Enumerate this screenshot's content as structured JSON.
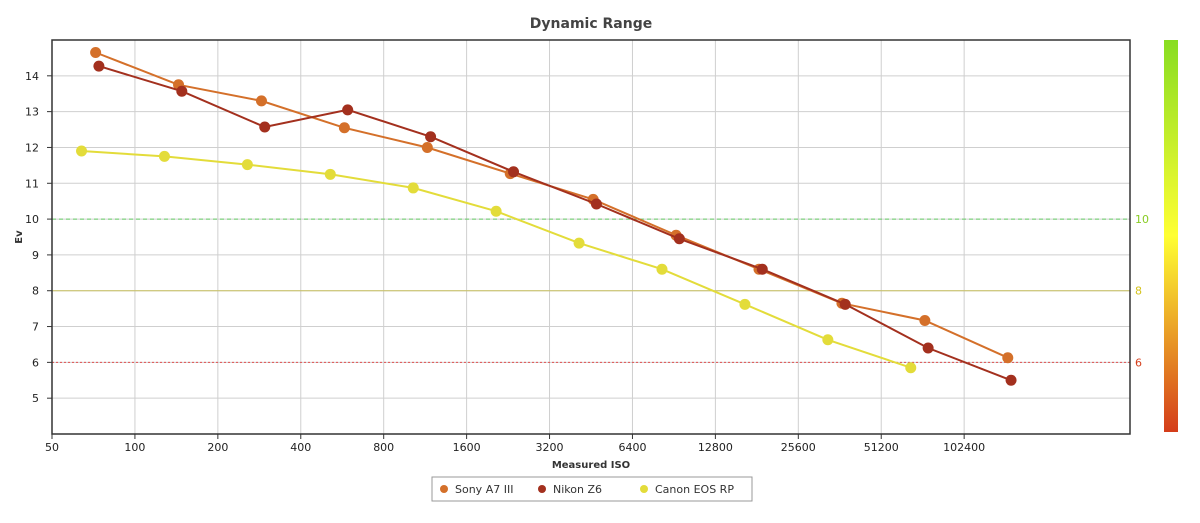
{
  "chart_data": {
    "type": "line",
    "title": "Dynamic Range",
    "xlabel": "Measured ISO",
    "ylabel": "Ev",
    "x_scale": "log2",
    "xlim": [
      50,
      409600
    ],
    "ylim": [
      4,
      15
    ],
    "grid": true,
    "x_ticks": [
      {
        "value": 50,
        "label": "50"
      },
      {
        "value": 100,
        "label": "100"
      },
      {
        "value": 200,
        "label": "200"
      },
      {
        "value": 400,
        "label": "400"
      },
      {
        "value": 800,
        "label": "800"
      },
      {
        "value": 1600,
        "label": "1600"
      },
      {
        "value": 3200,
        "label": "3200"
      },
      {
        "value": 6400,
        "label": "6400"
      },
      {
        "value": 12800,
        "label": "12800"
      },
      {
        "value": 25600,
        "label": "25600"
      },
      {
        "value": 51200,
        "label": "51200"
      },
      {
        "value": 102400,
        "label": "102400"
      }
    ],
    "y_ticks": [
      {
        "value": 5,
        "label": "5"
      },
      {
        "value": 6,
        "label": "6"
      },
      {
        "value": 7,
        "label": "7"
      },
      {
        "value": 8,
        "label": "8"
      },
      {
        "value": 9,
        "label": "9"
      },
      {
        "value": 10,
        "label": "10"
      },
      {
        "value": 11,
        "label": "11"
      },
      {
        "value": 12,
        "label": "12"
      },
      {
        "value": 13,
        "label": "13"
      },
      {
        "value": 14,
        "label": "14"
      }
    ],
    "right_axis": {
      "ticks": [
        {
          "value": 6,
          "label": "6",
          "color": "#d43d1a"
        },
        {
          "value": 8,
          "label": "8",
          "color": "#d4c21a"
        },
        {
          "value": 10,
          "label": "10",
          "color": "#88cc22"
        }
      ],
      "gradient": [
        "#88dd22",
        "#ffff33",
        "#d43d1a"
      ]
    },
    "reference_lines": [
      {
        "value": 10,
        "color": "#66cc66",
        "style": "dashed"
      },
      {
        "value": 8,
        "color": "#c8c060",
        "style": "solid"
      },
      {
        "value": 6,
        "color": "#e05050",
        "style": "dotted"
      }
    ],
    "legend_position": "bottom-center",
    "series": [
      {
        "name": "Sony A7 III",
        "color": "#d4702a",
        "points": [
          [
            72,
            14.65
          ],
          [
            144,
            13.75
          ],
          [
            288,
            13.3
          ],
          [
            576,
            12.55
          ],
          [
            1152,
            12.0
          ],
          [
            2304,
            11.27
          ],
          [
            4608,
            10.55
          ],
          [
            9216,
            9.55
          ],
          [
            18432,
            8.6
          ],
          [
            36864,
            7.65
          ],
          [
            73728,
            7.17
          ],
          [
            147456,
            6.13
          ]
        ]
      },
      {
        "name": "Nikon Z6",
        "color": "#a3301e",
        "points": [
          [
            74,
            14.27
          ],
          [
            148,
            13.57
          ],
          [
            296,
            12.57
          ],
          [
            592,
            13.05
          ],
          [
            1184,
            12.3
          ],
          [
            2368,
            11.32
          ],
          [
            4736,
            10.42
          ],
          [
            9472,
            9.45
          ],
          [
            18944,
            8.6
          ],
          [
            37888,
            7.62
          ],
          [
            75776,
            6.4
          ],
          [
            151552,
            5.5
          ]
        ]
      },
      {
        "name": "Canon EOS RP",
        "color": "#e3dc3a",
        "points": [
          [
            64,
            11.9
          ],
          [
            128,
            11.75
          ],
          [
            256,
            11.52
          ],
          [
            512,
            11.25
          ],
          [
            1024,
            10.87
          ],
          [
            2048,
            10.22
          ],
          [
            4096,
            9.33
          ],
          [
            8192,
            8.6
          ],
          [
            16384,
            7.62
          ],
          [
            32768,
            6.63
          ],
          [
            65536,
            5.85
          ]
        ]
      }
    ]
  }
}
